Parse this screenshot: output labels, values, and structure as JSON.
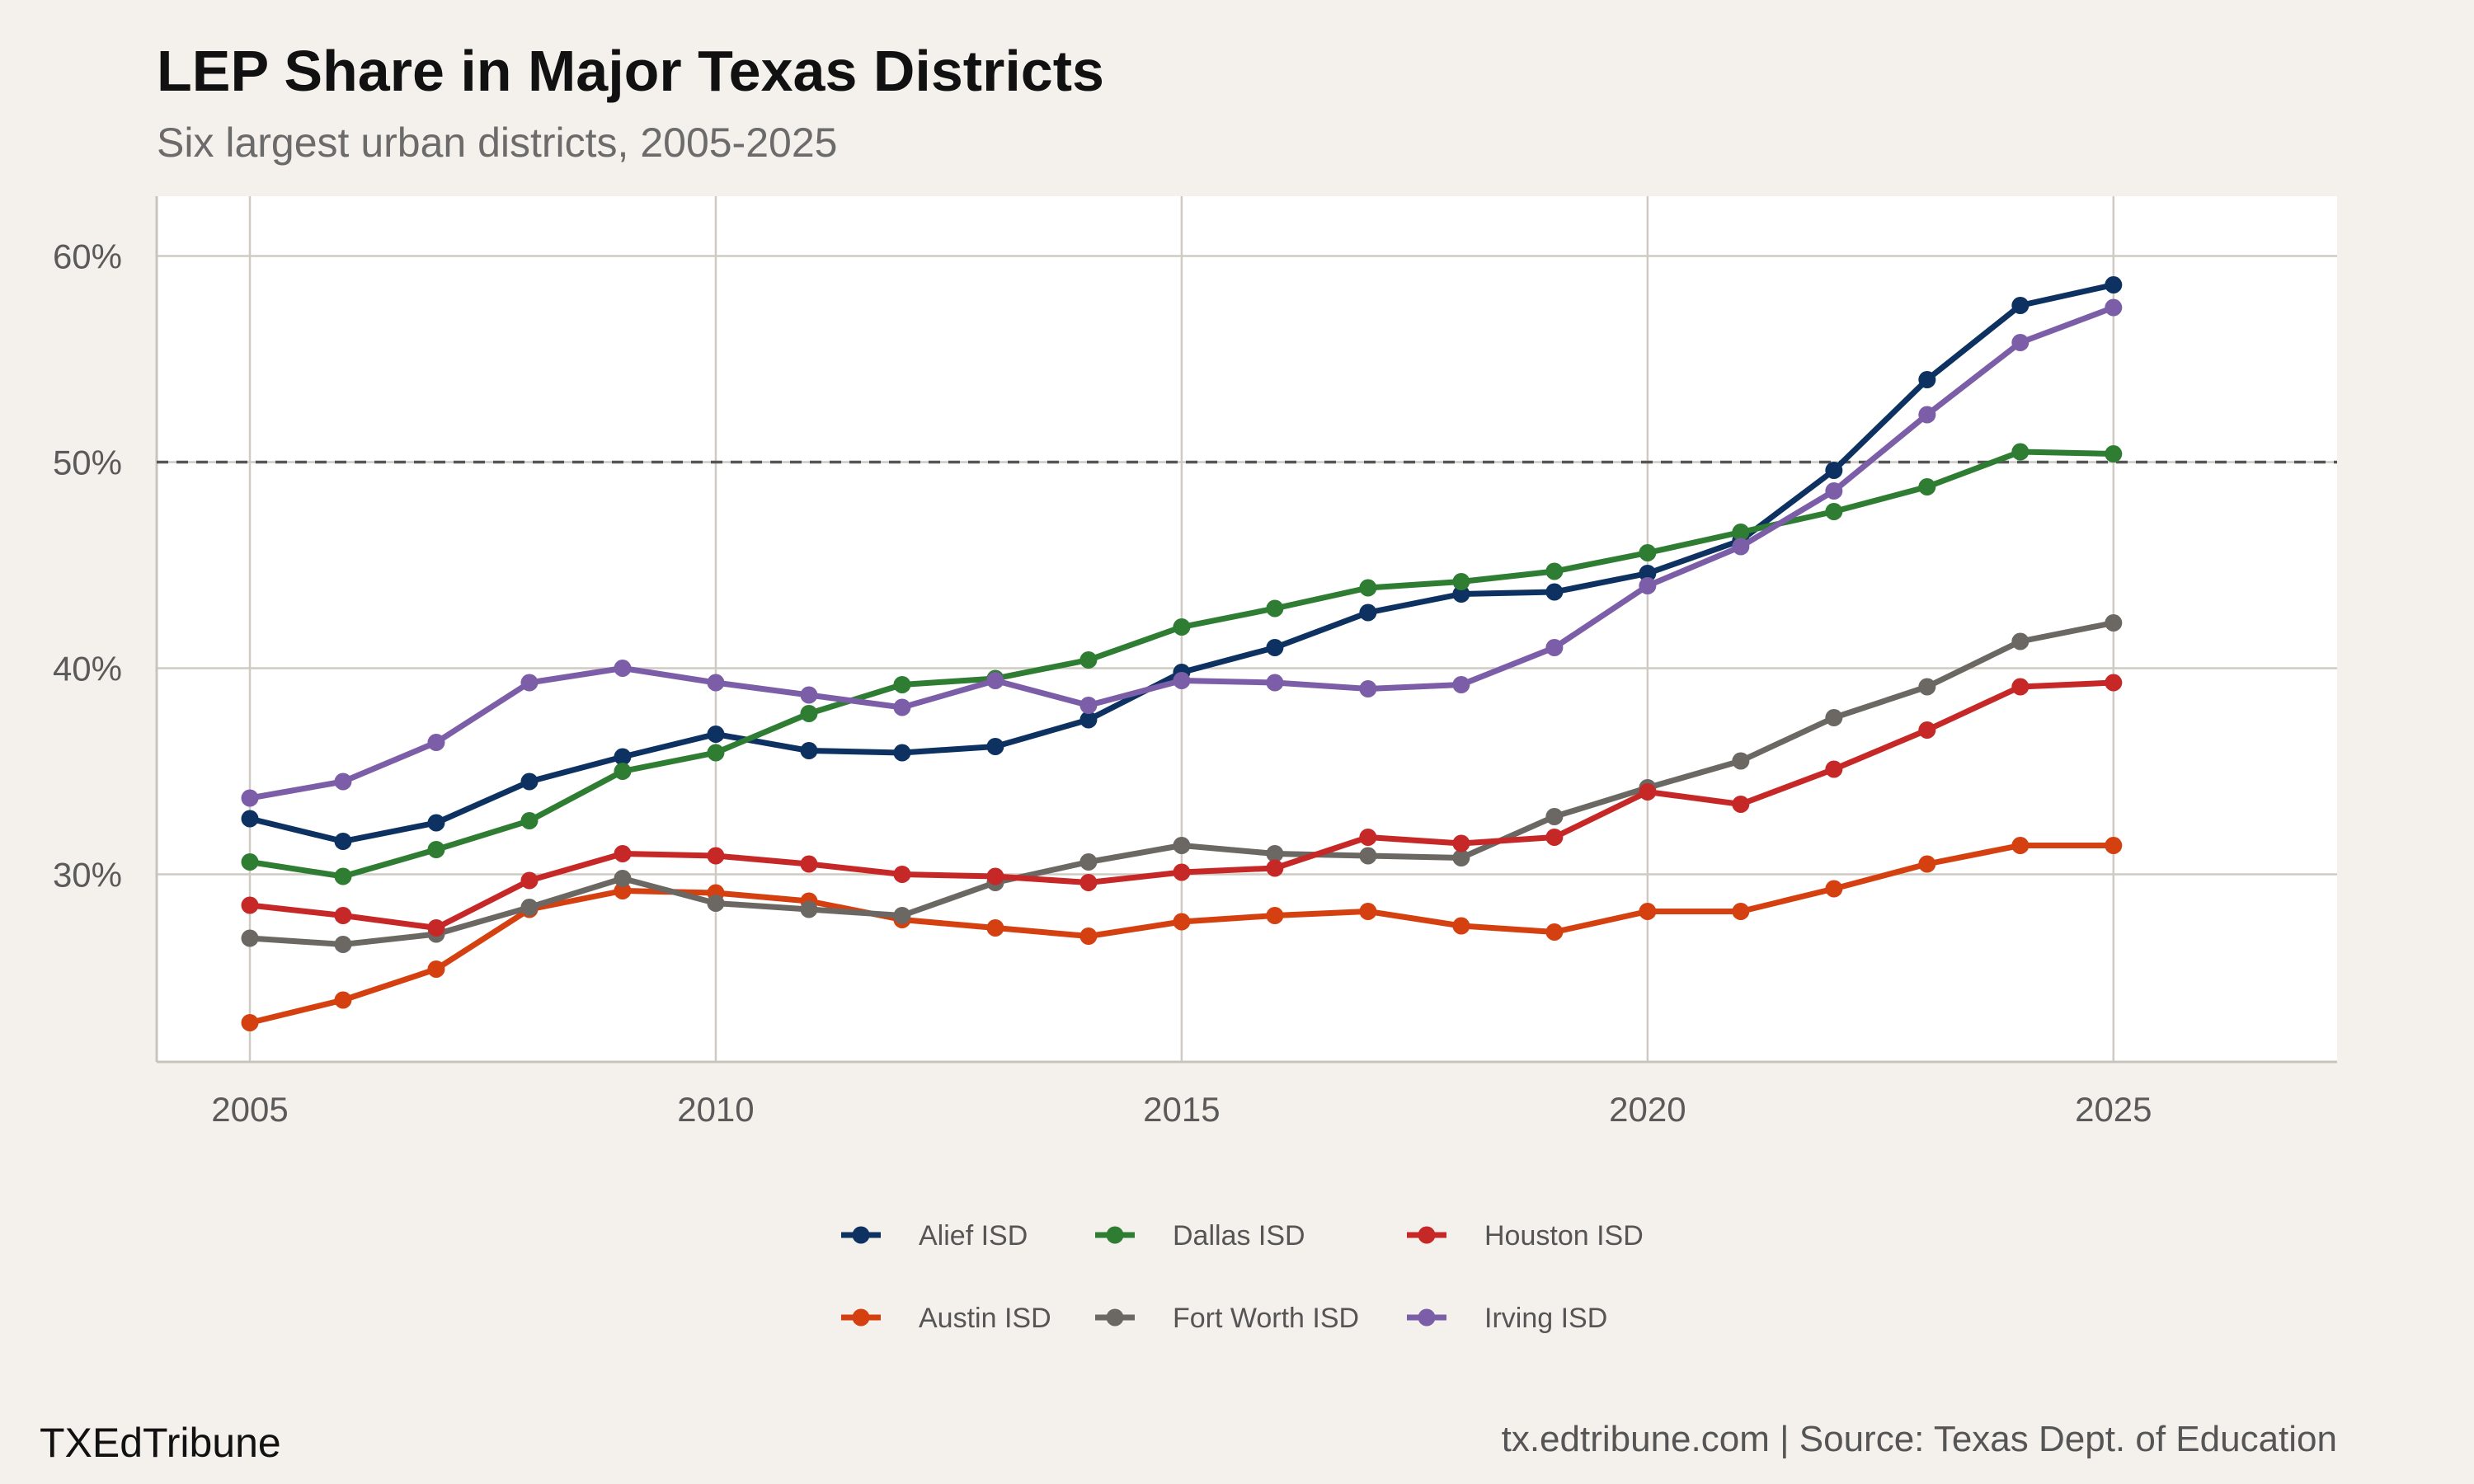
{
  "chart_data": {
    "type": "line",
    "title": "LEP Share in Major Texas Districts",
    "subtitle": "Six largest urban districts, 2005-2025",
    "xlabel": "",
    "ylabel": "",
    "x": [
      2005,
      2006,
      2007,
      2008,
      2009,
      2010,
      2011,
      2012,
      2013,
      2014,
      2015,
      2016,
      2017,
      2018,
      2019,
      2020,
      2021,
      2022,
      2023,
      2024,
      2025
    ],
    "xlim": [
      2004,
      2027.4
    ],
    "ylim": [
      20.9,
      62.9
    ],
    "x_ticks": [
      2005,
      2010,
      2015,
      2020,
      2025
    ],
    "x_tick_labels": [
      "2005",
      "2010",
      "2015",
      "2020",
      "2025"
    ],
    "y_ticks": [
      30,
      40,
      50,
      60
    ],
    "y_tick_labels": [
      "30%",
      "40%",
      "50%",
      "60%"
    ],
    "reference_line": {
      "y": 50,
      "style": "dashed",
      "color": "#555555"
    },
    "grid": true,
    "legend_position": "bottom",
    "series": [
      {
        "name": "Alief ISD",
        "color": "#0d3161",
        "values": [
          32.7,
          31.6,
          32.5,
          34.5,
          35.7,
          36.8,
          36.0,
          35.9,
          36.2,
          37.5,
          39.8,
          41.0,
          42.7,
          43.6,
          43.7,
          44.6,
          46.2,
          49.6,
          54.0,
          57.6,
          58.6
        ]
      },
      {
        "name": "Austin ISD",
        "color": "#d4400f",
        "values": [
          22.8,
          23.9,
          25.4,
          28.3,
          29.2,
          29.1,
          28.7,
          27.8,
          27.4,
          27.0,
          27.7,
          28.0,
          28.2,
          27.5,
          27.2,
          28.2,
          28.2,
          29.3,
          30.5,
          31.4,
          31.4
        ]
      },
      {
        "name": "Dallas ISD",
        "color": "#2e7d32",
        "values": [
          30.6,
          29.9,
          31.2,
          32.6,
          35.0,
          35.9,
          37.8,
          39.2,
          39.5,
          40.4,
          42.0,
          42.9,
          43.9,
          44.2,
          44.7,
          45.6,
          46.6,
          47.6,
          48.8,
          50.5,
          50.4
        ]
      },
      {
        "name": "Fort Worth ISD",
        "color": "#6b6762",
        "values": [
          26.9,
          26.6,
          27.1,
          28.4,
          29.8,
          28.6,
          28.3,
          28.0,
          29.6,
          30.6,
          31.4,
          31.0,
          30.9,
          30.8,
          32.8,
          34.2,
          35.5,
          37.6,
          39.1,
          41.3,
          42.2
        ]
      },
      {
        "name": "Houston ISD",
        "color": "#c62828",
        "values": [
          28.5,
          28.0,
          27.4,
          29.7,
          31.0,
          30.9,
          30.5,
          30.0,
          29.9,
          29.6,
          30.1,
          30.3,
          31.8,
          31.5,
          31.8,
          34.0,
          33.4,
          35.1,
          37.0,
          39.1,
          39.3
        ]
      },
      {
        "name": "Irving ISD",
        "color": "#7b5ea7",
        "values": [
          33.7,
          34.5,
          36.4,
          39.3,
          40.0,
          39.3,
          38.7,
          38.1,
          39.4,
          38.2,
          39.4,
          39.3,
          39.0,
          39.2,
          41.0,
          44.0,
          45.9,
          48.6,
          52.3,
          55.8,
          57.5
        ]
      }
    ]
  },
  "legend": {
    "items": [
      {
        "label": "Alief ISD",
        "color": "#0d3161"
      },
      {
        "label": "Dallas ISD",
        "color": "#2e7d32"
      },
      {
        "label": "Houston ISD",
        "color": "#c62828"
      },
      {
        "label": "Austin ISD",
        "color": "#d4400f"
      },
      {
        "label": "Fort Worth ISD",
        "color": "#6b6762"
      },
      {
        "label": "Irving ISD",
        "color": "#7b5ea7"
      }
    ]
  },
  "footer": {
    "brand": "TXEdTribune",
    "source": "tx.edtribune.com | Source: Texas Dept. of Education"
  }
}
